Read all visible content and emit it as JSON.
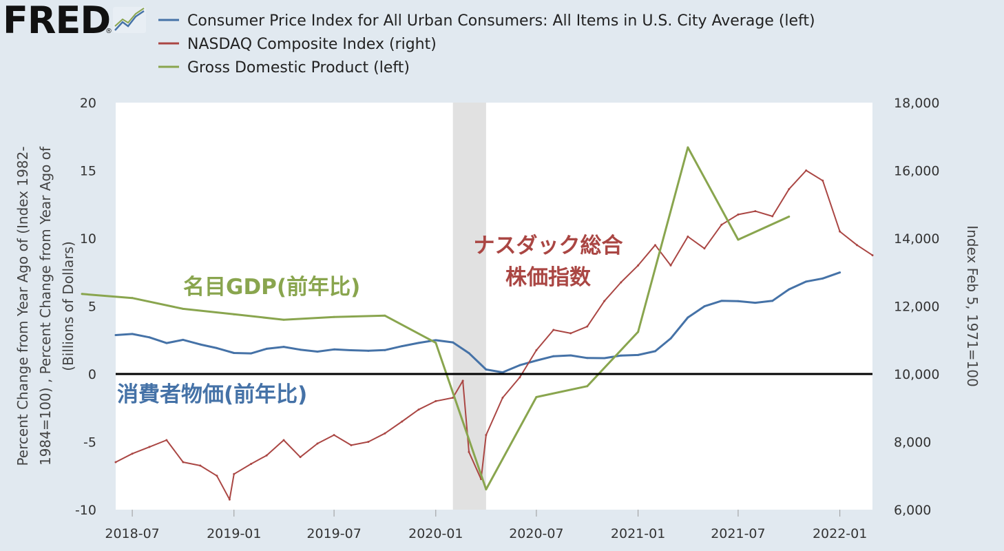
{
  "header": {
    "logo_text": "FRED",
    "logo_mark": "®"
  },
  "colors": {
    "cpi": "#4572a7",
    "nasdaq": "#aa4643",
    "gdp": "#89a54e",
    "background": "#e1e9f0",
    "plot_bg": "#ffffff",
    "recession": "#e1e1e1",
    "zero_line": "#000000"
  },
  "chart_data": {
    "type": "line",
    "x_type": "date",
    "x_range": [
      "2018-06-01",
      "2022-03-01"
    ],
    "x_ticks": [
      "2018-07",
      "2019-01",
      "2019-07",
      "2020-01",
      "2020-07",
      "2021-01",
      "2021-07",
      "2022-01"
    ],
    "y_left": {
      "label": "Percent Change from Year Ago of (Index 1982-1984=100) , Percent Change from Year Ago of (Billions of Dollars)",
      "label_lines": [
        "Percent Change from Year Ago of (Index 1982-",
        "1984=100) , Percent Change from Year Ago of",
        "(Billions of Dollars)"
      ],
      "range": [
        -10,
        20
      ],
      "ticks": [
        "-10",
        "-5",
        "0",
        "5",
        "10",
        "15",
        "20"
      ]
    },
    "y_right": {
      "label": "Index Feb 5, 1971=100",
      "range": [
        6000,
        18000
      ],
      "ticks": [
        "6,000",
        "8,000",
        "10,000",
        "12,000",
        "14,000",
        "16,000",
        "18,000"
      ]
    },
    "recession": {
      "start": "2020-02-01",
      "end": "2020-04-01"
    },
    "zero_line": 0,
    "series": [
      {
        "name": "Consumer Price Index for All Urban Consumers: All Items in U.S. City Average (left)",
        "axis": "left",
        "x": [
          "2018-06-01",
          "2018-07-01",
          "2018-08-01",
          "2018-09-01",
          "2018-10-01",
          "2018-11-01",
          "2018-12-01",
          "2019-01-01",
          "2019-02-01",
          "2019-03-01",
          "2019-04-01",
          "2019-05-01",
          "2019-06-01",
          "2019-07-01",
          "2019-08-01",
          "2019-09-01",
          "2019-10-01",
          "2019-11-01",
          "2019-12-01",
          "2020-01-01",
          "2020-02-01",
          "2020-03-01",
          "2020-04-01",
          "2020-05-01",
          "2020-06-01",
          "2020-07-01",
          "2020-08-01",
          "2020-09-01",
          "2020-10-01",
          "2020-11-01",
          "2020-12-01",
          "2021-01-01",
          "2021-02-01",
          "2021-03-01",
          "2021-04-01",
          "2021-05-01",
          "2021-06-01",
          "2021-07-01",
          "2021-08-01",
          "2021-09-01",
          "2021-10-01",
          "2021-11-01",
          "2021-12-01",
          "2022-01-01"
        ],
        "values": [
          2.87,
          2.95,
          2.7,
          2.28,
          2.52,
          2.18,
          1.91,
          1.55,
          1.52,
          1.86,
          2.0,
          1.79,
          1.65,
          1.81,
          1.75,
          1.71,
          1.76,
          2.05,
          2.29,
          2.49,
          2.33,
          1.54,
          0.33,
          0.12,
          0.65,
          0.99,
          1.31,
          1.37,
          1.18,
          1.17,
          1.36,
          1.4,
          1.68,
          2.62,
          4.16,
          4.99,
          5.39,
          5.37,
          5.25,
          5.39,
          6.24,
          6.81,
          7.04,
          7.48
        ]
      },
      {
        "name": "NASDAQ Composite Index (right)",
        "axis": "right",
        "x": [
          "2018-06-01",
          "2018-07-01",
          "2018-08-01",
          "2018-09-01",
          "2018-10-01",
          "2018-11-01",
          "2018-12-01",
          "2018-12-24",
          "2019-01-01",
          "2019-02-01",
          "2019-03-01",
          "2019-04-01",
          "2019-05-01",
          "2019-06-01",
          "2019-07-01",
          "2019-08-01",
          "2019-09-01",
          "2019-10-01",
          "2019-11-01",
          "2019-12-01",
          "2020-01-01",
          "2020-02-01",
          "2020-02-19",
          "2020-03-01",
          "2020-03-23",
          "2020-04-01",
          "2020-05-01",
          "2020-06-01",
          "2020-07-01",
          "2020-08-01",
          "2020-09-01",
          "2020-10-01",
          "2020-11-01",
          "2020-12-01",
          "2021-01-01",
          "2021-02-01",
          "2021-03-01",
          "2021-04-01",
          "2021-05-01",
          "2021-06-01",
          "2021-07-01",
          "2021-08-01",
          "2021-09-01",
          "2021-10-01",
          "2021-11-01",
          "2021-12-01",
          "2022-01-01",
          "2022-02-01",
          "2022-03-01"
        ],
        "values": [
          7400,
          7650,
          7850,
          8050,
          7400,
          7300,
          7000,
          6300,
          7050,
          7350,
          7600,
          8050,
          7550,
          7950,
          8200,
          7900,
          8000,
          8250,
          8600,
          8950,
          9200,
          9300,
          9800,
          7700,
          6900,
          8200,
          9300,
          9900,
          10700,
          11300,
          11200,
          11400,
          12150,
          12700,
          13200,
          13800,
          13200,
          14050,
          13700,
          14400,
          14700,
          14800,
          14650,
          15450,
          16000,
          15700,
          14200,
          13800,
          13500
        ]
      },
      {
        "name": "Gross Domestic Product (left)",
        "axis": "left",
        "x": [
          "2018-04-01",
          "2018-07-01",
          "2018-10-01",
          "2019-01-01",
          "2019-04-01",
          "2019-07-01",
          "2019-10-01",
          "2020-01-01",
          "2020-04-01",
          "2020-07-01",
          "2020-10-01",
          "2021-01-01",
          "2021-04-01",
          "2021-07-01",
          "2021-10-01"
        ],
        "values": [
          5.9,
          5.6,
          4.8,
          4.4,
          4.0,
          4.2,
          4.3,
          2.3,
          -8.5,
          -1.7,
          -0.9,
          3.1,
          16.7,
          9.9,
          11.6
        ]
      }
    ],
    "annotations": [
      {
        "text": "消費者物価(前年比)",
        "series": "cpi"
      },
      {
        "text": "名目GDP(前年比)",
        "series": "gdp"
      },
      {
        "text": "ナスダック総合",
        "series": "nasdaq"
      },
      {
        "text": "株価指数",
        "series": "nasdaq"
      }
    ]
  }
}
